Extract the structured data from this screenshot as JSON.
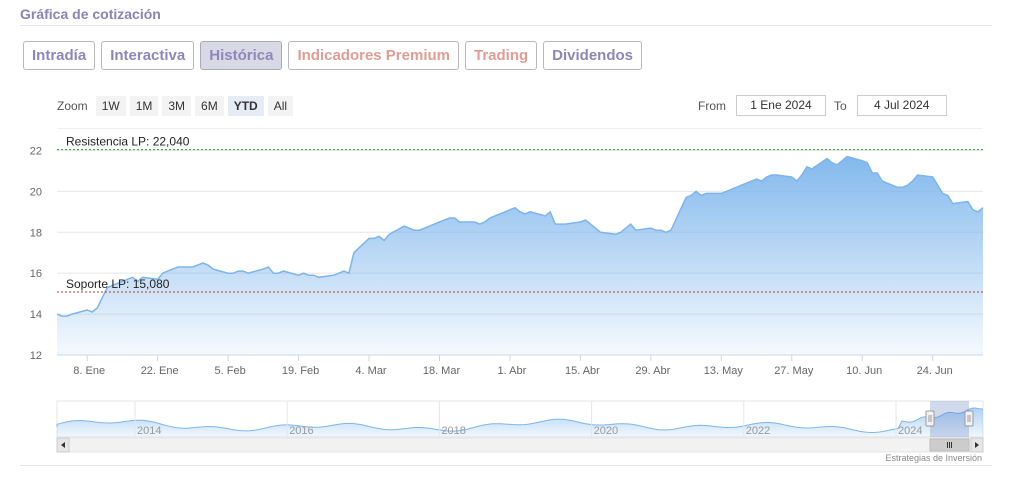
{
  "header": {
    "title": "Gráfica de cotización"
  },
  "tabs": [
    {
      "label": "Intradía",
      "style": "primary",
      "active": false
    },
    {
      "label": "Interactiva",
      "style": "primary",
      "active": false
    },
    {
      "label": "Histórica",
      "style": "primary",
      "active": true
    },
    {
      "label": "Indicadores Premium",
      "style": "premium",
      "active": false
    },
    {
      "label": "Trading",
      "style": "premium",
      "active": false
    },
    {
      "label": "Dividendos",
      "style": "primary",
      "active": false
    }
  ],
  "zoom": {
    "label": "Zoom",
    "options": [
      "1W",
      "1M",
      "3M",
      "6M",
      "YTD",
      "All"
    ],
    "selected": "YTD"
  },
  "range": {
    "from_label": "From",
    "from_value": "1 Ene 2024",
    "to_label": "To",
    "to_value": "4 Jul 2024"
  },
  "credit": "Estrategias de Inversión",
  "colors": {
    "accent": "#8d87bb",
    "premium": "#e39b94",
    "series_line": "#7cb5ec",
    "resistance": "#2e9e2e",
    "support": "#c0392b"
  },
  "chart_data": {
    "type": "area",
    "ylim": [
      12,
      23
    ],
    "yticks": [
      12,
      14,
      16,
      18,
      20,
      22
    ],
    "xlim": [
      "2024-01-02",
      "2024-07-04"
    ],
    "xticks": [
      {
        "date": "2024-01-08",
        "label": "8. Ene"
      },
      {
        "date": "2024-01-22",
        "label": "22. Ene"
      },
      {
        "date": "2024-02-05",
        "label": "5. Feb"
      },
      {
        "date": "2024-02-19",
        "label": "19. Feb"
      },
      {
        "date": "2024-03-04",
        "label": "4. Mar"
      },
      {
        "date": "2024-03-18",
        "label": "18. Mar"
      },
      {
        "date": "2024-04-01",
        "label": "1. Abr"
      },
      {
        "date": "2024-04-15",
        "label": "15. Abr"
      },
      {
        "date": "2024-04-29",
        "label": "29. Abr"
      },
      {
        "date": "2024-05-13",
        "label": "13. May"
      },
      {
        "date": "2024-05-27",
        "label": "27. May"
      },
      {
        "date": "2024-06-10",
        "label": "10. Jun"
      },
      {
        "date": "2024-06-24",
        "label": "24. Jun"
      }
    ],
    "plot_lines": [
      {
        "value": 22.04,
        "label": "Resistencia LP: 22,040",
        "color": "#2e9e2e"
      },
      {
        "value": 15.08,
        "label": "Soporte LP: 15,080",
        "color": "#c0392b"
      }
    ],
    "series": [
      {
        "points": [
          [
            "2024-01-02",
            14.0
          ],
          [
            "2024-01-03",
            13.9
          ],
          [
            "2024-01-04",
            13.9
          ],
          [
            "2024-01-05",
            14.0
          ],
          [
            "2024-01-08",
            14.2
          ],
          [
            "2024-01-09",
            14.1
          ],
          [
            "2024-01-10",
            14.3
          ],
          [
            "2024-01-11",
            14.8
          ],
          [
            "2024-01-12",
            15.3
          ],
          [
            "2024-01-15",
            15.6
          ],
          [
            "2024-01-16",
            15.7
          ],
          [
            "2024-01-17",
            15.8
          ],
          [
            "2024-01-18",
            15.6
          ],
          [
            "2024-01-19",
            15.8
          ],
          [
            "2024-01-22",
            15.7
          ],
          [
            "2024-01-23",
            16.0
          ],
          [
            "2024-01-24",
            16.1
          ],
          [
            "2024-01-25",
            16.2
          ],
          [
            "2024-01-26",
            16.3
          ],
          [
            "2024-01-29",
            16.3
          ],
          [
            "2024-01-30",
            16.4
          ],
          [
            "2024-01-31",
            16.5
          ],
          [
            "2024-02-01",
            16.4
          ],
          [
            "2024-02-02",
            16.2
          ],
          [
            "2024-02-05",
            16.0
          ],
          [
            "2024-02-06",
            16.0
          ],
          [
            "2024-02-07",
            16.1
          ],
          [
            "2024-02-08",
            16.1
          ],
          [
            "2024-02-09",
            16.0
          ],
          [
            "2024-02-12",
            16.2
          ],
          [
            "2024-02-13",
            16.3
          ],
          [
            "2024-02-14",
            16.0
          ],
          [
            "2024-02-15",
            16.0
          ],
          [
            "2024-02-16",
            16.1
          ],
          [
            "2024-02-19",
            15.9
          ],
          [
            "2024-02-20",
            16.0
          ],
          [
            "2024-02-21",
            15.9
          ],
          [
            "2024-02-22",
            15.9
          ],
          [
            "2024-02-23",
            15.8
          ],
          [
            "2024-02-26",
            15.9
          ],
          [
            "2024-02-27",
            16.0
          ],
          [
            "2024-02-28",
            16.1
          ],
          [
            "2024-02-29",
            16.0
          ],
          [
            "2024-03-01",
            17.0
          ],
          [
            "2024-03-04",
            17.7
          ],
          [
            "2024-03-05",
            17.7
          ],
          [
            "2024-03-06",
            17.8
          ],
          [
            "2024-03-07",
            17.6
          ],
          [
            "2024-03-08",
            17.9
          ],
          [
            "2024-03-11",
            18.3
          ],
          [
            "2024-03-12",
            18.2
          ],
          [
            "2024-03-13",
            18.1
          ],
          [
            "2024-03-14",
            18.1
          ],
          [
            "2024-03-15",
            18.2
          ],
          [
            "2024-03-18",
            18.5
          ],
          [
            "2024-03-19",
            18.6
          ],
          [
            "2024-03-20",
            18.7
          ],
          [
            "2024-03-21",
            18.7
          ],
          [
            "2024-03-22",
            18.5
          ],
          [
            "2024-03-25",
            18.5
          ],
          [
            "2024-03-26",
            18.4
          ],
          [
            "2024-03-27",
            18.5
          ],
          [
            "2024-03-28",
            18.7
          ],
          [
            "2024-04-02",
            19.2
          ],
          [
            "2024-04-03",
            19.0
          ],
          [
            "2024-04-04",
            18.9
          ],
          [
            "2024-04-05",
            19.0
          ],
          [
            "2024-04-08",
            18.8
          ],
          [
            "2024-04-09",
            19.0
          ],
          [
            "2024-04-10",
            18.4
          ],
          [
            "2024-04-11",
            18.4
          ],
          [
            "2024-04-12",
            18.4
          ],
          [
            "2024-04-15",
            18.5
          ],
          [
            "2024-04-16",
            18.6
          ],
          [
            "2024-04-17",
            18.4
          ],
          [
            "2024-04-18",
            18.2
          ],
          [
            "2024-04-19",
            18.0
          ],
          [
            "2024-04-22",
            17.9
          ],
          [
            "2024-04-23",
            18.0
          ],
          [
            "2024-04-24",
            18.2
          ],
          [
            "2024-04-25",
            18.4
          ],
          [
            "2024-04-26",
            18.1
          ],
          [
            "2024-04-29",
            18.2
          ],
          [
            "2024-04-30",
            18.1
          ],
          [
            "2024-05-01",
            18.1
          ],
          [
            "2024-05-02",
            18.0
          ],
          [
            "2024-05-03",
            18.1
          ],
          [
            "2024-05-06",
            19.7
          ],
          [
            "2024-05-07",
            19.8
          ],
          [
            "2024-05-08",
            20.0
          ],
          [
            "2024-05-09",
            19.8
          ],
          [
            "2024-05-10",
            19.9
          ],
          [
            "2024-05-13",
            19.9
          ],
          [
            "2024-05-14",
            20.0
          ],
          [
            "2024-05-15",
            20.1
          ],
          [
            "2024-05-16",
            20.2
          ],
          [
            "2024-05-17",
            20.3
          ],
          [
            "2024-05-20",
            20.6
          ],
          [
            "2024-05-21",
            20.5
          ],
          [
            "2024-05-22",
            20.7
          ],
          [
            "2024-05-23",
            20.8
          ],
          [
            "2024-05-24",
            20.8
          ],
          [
            "2024-05-27",
            20.7
          ],
          [
            "2024-05-28",
            20.5
          ],
          [
            "2024-05-29",
            20.8
          ],
          [
            "2024-05-30",
            21.2
          ],
          [
            "2024-05-31",
            21.1
          ],
          [
            "2024-06-03",
            21.6
          ],
          [
            "2024-06-04",
            21.4
          ],
          [
            "2024-06-05",
            21.3
          ],
          [
            "2024-06-06",
            21.5
          ],
          [
            "2024-06-07",
            21.7
          ],
          [
            "2024-06-10",
            21.5
          ],
          [
            "2024-06-11",
            21.4
          ],
          [
            "2024-06-12",
            20.9
          ],
          [
            "2024-06-13",
            20.9
          ],
          [
            "2024-06-14",
            20.5
          ],
          [
            "2024-06-17",
            20.2
          ],
          [
            "2024-06-18",
            20.2
          ],
          [
            "2024-06-19",
            20.3
          ],
          [
            "2024-06-20",
            20.5
          ],
          [
            "2024-06-21",
            20.8
          ],
          [
            "2024-06-24",
            20.7
          ],
          [
            "2024-06-25",
            20.3
          ],
          [
            "2024-06-26",
            19.9
          ],
          [
            "2024-06-27",
            19.8
          ],
          [
            "2024-06-28",
            19.4
          ],
          [
            "2024-07-01",
            19.5
          ],
          [
            "2024-07-02",
            19.1
          ],
          [
            "2024-07-03",
            19.0
          ],
          [
            "2024-07-04",
            19.2
          ]
        ]
      }
    ],
    "navigator": {
      "year_labels": [
        "2014",
        "2016",
        "2018",
        "2020",
        "2022",
        "2024"
      ]
    }
  }
}
